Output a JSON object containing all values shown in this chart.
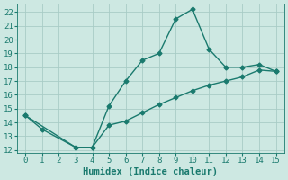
{
  "xlabel": "Humidex (Indice chaleur)",
  "line1_x": [
    0,
    1,
    3,
    4,
    5,
    6,
    7,
    8,
    9,
    10,
    11,
    12,
    13,
    14,
    15
  ],
  "line1_y": [
    14.5,
    13.5,
    12.2,
    12.2,
    15.2,
    17.0,
    18.5,
    19.0,
    21.5,
    22.2,
    19.3,
    18.0,
    18.0,
    18.2,
    17.7
  ],
  "line2_x": [
    0,
    3,
    4,
    5,
    6,
    7,
    8,
    9,
    10,
    11,
    12,
    13,
    14,
    15
  ],
  "line2_y": [
    14.5,
    12.2,
    12.2,
    13.8,
    14.1,
    14.7,
    15.3,
    15.8,
    16.3,
    16.7,
    17.0,
    17.3,
    17.8,
    17.7
  ],
  "line_color": "#1a7a6e",
  "bg_color": "#cde8e2",
  "grid_color": "#a8ccc6",
  "xlim": [
    -0.5,
    15.5
  ],
  "ylim": [
    11.8,
    22.6
  ],
  "xticks": [
    0,
    1,
    2,
    3,
    4,
    5,
    6,
    7,
    8,
    9,
    10,
    11,
    12,
    13,
    14,
    15
  ],
  "yticks": [
    12,
    13,
    14,
    15,
    16,
    17,
    18,
    19,
    20,
    21,
    22
  ],
  "marker": "D",
  "marker_size": 2.5,
  "line_width": 1.0,
  "tick_fontsize": 6.5,
  "xlabel_fontsize": 7.5
}
